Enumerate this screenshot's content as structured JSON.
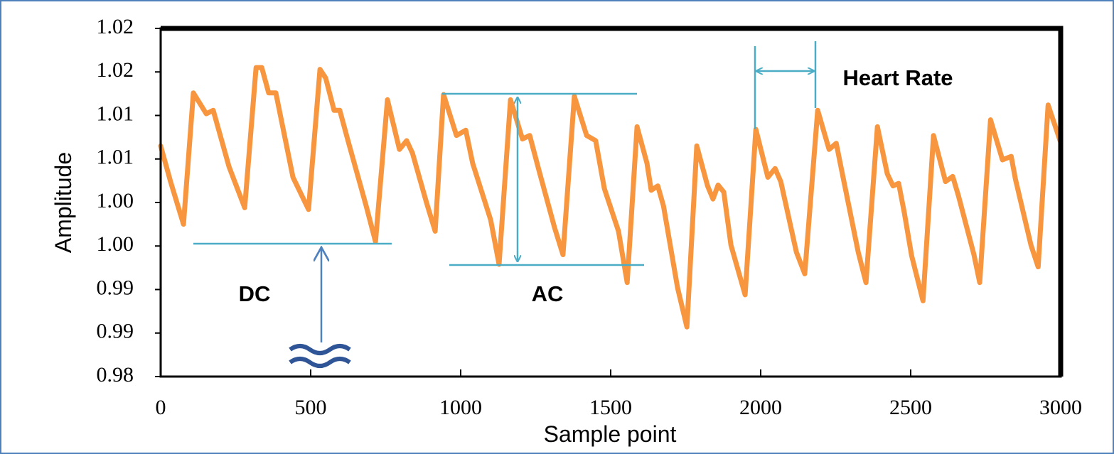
{
  "chart_data": {
    "type": "line",
    "x_label": "Sample point",
    "y_label": "Amplitude",
    "annotations": [
      "DC",
      "AC",
      "Heart Rate"
    ],
    "x": [
      0,
      33,
      76,
      109,
      152,
      175,
      228,
      280,
      318,
      337,
      360,
      384,
      441,
      493,
      531,
      550,
      578,
      597,
      626,
      685,
      716,
      756,
      796,
      820,
      839,
      886,
      915,
      943,
      986,
      1017,
      1040,
      1100,
      1128,
      1166,
      1206,
      1230,
      1261,
      1313,
      1341,
      1379,
      1420,
      1450,
      1479,
      1526,
      1555,
      1588,
      1621,
      1635,
      1657,
      1676,
      1723,
      1754,
      1787,
      1823,
      1841,
      1858,
      1877,
      1901,
      1948,
      1984,
      2024,
      2048,
      2067,
      2119,
      2147,
      2190,
      2228,
      2252,
      2270,
      2325,
      2351,
      2389,
      2422,
      2441,
      2460,
      2479,
      2503,
      2541,
      2576,
      2616,
      2640,
      2659,
      2711,
      2730,
      2766,
      2806,
      2835,
      2849,
      2901,
      2925,
      2958,
      3000
    ],
    "series": [
      {
        "color": "#f7963f",
        "values": [
          1.0065,
          1.0024,
          0.9975,
          1.0126,
          1.0102,
          1.0106,
          1.0041,
          0.9994,
          1.0155,
          1.0155,
          1.0126,
          1.0126,
          1.0029,
          0.9992,
          1.0153,
          1.0143,
          1.0106,
          1.0106,
          1.0069,
          0.9996,
          0.9955,
          1.0118,
          1.0061,
          1.0071,
          1.0057,
          1.0,
          0.9967,
          1.0124,
          1.0077,
          1.0083,
          1.0045,
          0.998,
          0.9929,
          1.0118,
          1.0073,
          1.0077,
          1.0037,
          0.9971,
          0.994,
          1.0122,
          1.0077,
          1.0071,
          1.0016,
          0.9967,
          0.9908,
          1.0087,
          1.0045,
          1.0014,
          1.0019,
          0.9996,
          0.9902,
          0.9857,
          1.0065,
          1.0019,
          1.0004,
          1.002,
          1.0012,
          0.9951,
          0.9894,
          1.0084,
          1.0029,
          1.0039,
          1.0024,
          0.9943,
          0.9918,
          1.0106,
          1.0061,
          1.0068,
          1.0037,
          0.9943,
          0.9908,
          1.0087,
          1.0033,
          1.0019,
          1.0022,
          0.9988,
          0.9939,
          0.9887,
          1.0077,
          1.0024,
          1.003,
          1.0008,
          0.994,
          0.9908,
          1.0095,
          1.0049,
          1.0053,
          1.0027,
          0.9951,
          0.9926,
          1.0112,
          1.0069
        ]
      }
    ],
    "xlim": [
      0,
      3000
    ],
    "xticks": [
      0,
      500,
      1000,
      1500,
      2000,
      2500,
      3000
    ],
    "ylim": [
      0.98,
      1.02
    ],
    "yticks": [
      0.98,
      {
        "value": 0.985,
        "label": "0.99"
      },
      0.99,
      {
        "value": 0.995,
        "label": "1.00"
      },
      {
        "value": 1.0,
        "label": "1.00"
      },
      {
        "value": 1.005,
        "label": "1.01"
      },
      1.01,
      {
        "value": 1.015,
        "label": "1.02"
      },
      1.02
    ]
  }
}
